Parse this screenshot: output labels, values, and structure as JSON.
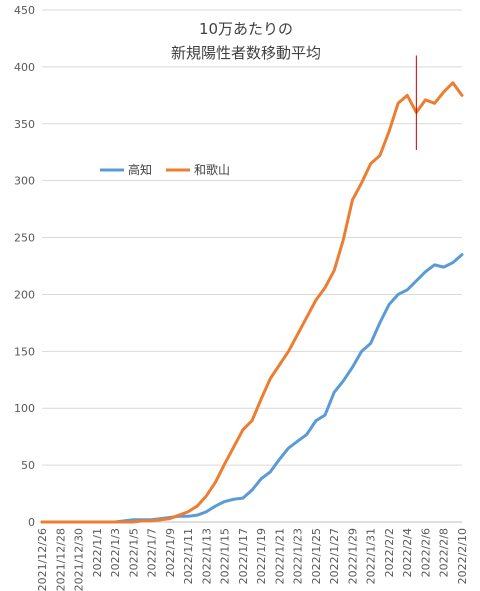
{
  "chart_data": {
    "type": "line",
    "title_lines": [
      "10万あたりの",
      "新規陽性者数移動平均"
    ],
    "xlabel": "",
    "ylabel": "",
    "ylim": [
      0,
      450
    ],
    "y_ticks": [
      0,
      50,
      100,
      150,
      200,
      250,
      300,
      350,
      400,
      450
    ],
    "grid": true,
    "legend_position": "left-middle",
    "x": [
      "2021/12/26",
      "2021/12/27",
      "2021/12/28",
      "2021/12/29",
      "2021/12/30",
      "2021/12/31",
      "2022/1/1",
      "2022/1/2",
      "2022/1/3",
      "2022/1/4",
      "2022/1/5",
      "2022/1/6",
      "2022/1/7",
      "2022/1/8",
      "2022/1/9",
      "2022/1/10",
      "2022/1/11",
      "2022/1/12",
      "2022/1/13",
      "2022/1/14",
      "2022/1/15",
      "2022/1/16",
      "2022/1/17",
      "2022/1/18",
      "2022/1/19",
      "2022/1/20",
      "2022/1/21",
      "2022/1/22",
      "2022/1/23",
      "2022/1/24",
      "2022/1/25",
      "2022/1/26",
      "2022/1/27",
      "2022/1/28",
      "2022/1/29",
      "2022/1/30",
      "2022/1/31",
      "2022/2/1",
      "2022/2/2",
      "2022/2/3",
      "2022/2/4",
      "2022/2/5",
      "2022/2/6",
      "2022/2/7",
      "2022/2/8",
      "2022/2/9",
      "2022/2/10"
    ],
    "x_tick_labels": [
      "2021/12/26",
      "2021/12/28",
      "2021/12/30",
      "2022/1/1",
      "2022/1/3",
      "2022/1/5",
      "2022/1/7",
      "2022/1/9",
      "2022/1/11",
      "2022/1/13",
      "2022/1/15",
      "2022/1/17",
      "2022/1/19",
      "2022/1/21",
      "2022/1/23",
      "2022/1/25",
      "2022/1/27",
      "2022/1/29",
      "2022/1/31",
      "2022/2/2",
      "2022/2/4",
      "2022/2/6",
      "2022/2/8",
      "2022/2/10"
    ],
    "series": [
      {
        "name": "高知",
        "color": "#5B9BD5",
        "values": [
          0,
          0,
          0,
          0,
          0,
          0,
          0,
          0,
          0,
          1,
          2,
          2,
          2,
          3,
          4,
          5,
          5,
          6,
          9,
          14,
          18,
          20,
          21,
          28,
          38,
          44,
          55,
          65,
          71,
          77,
          89,
          94,
          114,
          124,
          136,
          150,
          157,
          175,
          191,
          200,
          204,
          212,
          220,
          226,
          224,
          228,
          235
        ]
      },
      {
        "name": "和歌山",
        "color": "#ED7D31",
        "values": [
          0,
          0,
          0,
          0,
          0,
          0,
          0,
          0,
          0,
          0,
          0,
          1,
          1,
          2,
          3,
          6,
          9,
          14,
          23,
          35,
          51,
          66,
          81,
          89,
          108,
          126,
          138,
          150,
          165,
          180,
          195,
          206,
          221,
          248,
          283,
          298,
          315,
          322,
          343,
          368,
          375,
          360,
          371,
          368,
          378,
          386,
          375
        ]
      }
    ],
    "marker_line": {
      "x": "2022/2/5",
      "y_range": [
        327,
        410
      ],
      "color": "#C00000"
    }
  }
}
